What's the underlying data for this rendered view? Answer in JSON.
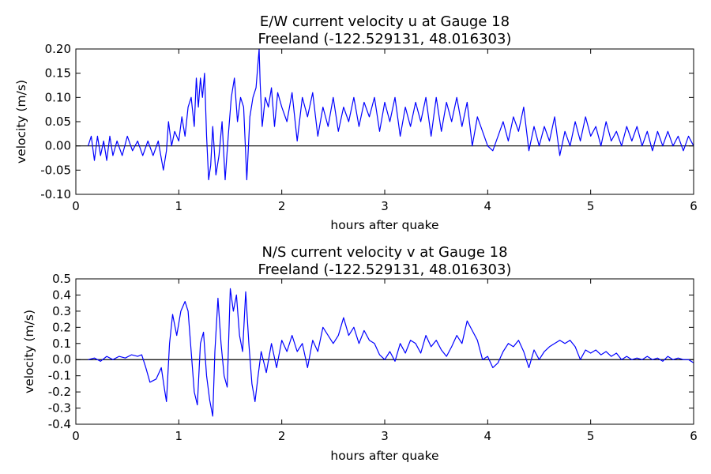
{
  "chart_data": [
    {
      "type": "line",
      "title": "E/W current velocity u at Gauge 18",
      "subtitle": "Freeland  (-122.529131, 48.016303)",
      "xlabel": "hours after quake",
      "ylabel": "velocity (m/s)",
      "xlim": [
        0,
        6
      ],
      "ylim": [
        -0.1,
        0.2
      ],
      "xticks": [
        "0",
        "1",
        "2",
        "3",
        "4",
        "5",
        "6"
      ],
      "yticks": [
        "-0.10",
        "-0.05",
        "0.00",
        "0.05",
        "0.10",
        "0.15",
        "0.20"
      ],
      "grid": false,
      "zero_line": true,
      "colors": {
        "series": "#0000ff",
        "zero": "#000000"
      },
      "series": [
        {
          "x": [
            0.12,
            0.15,
            0.18,
            0.21,
            0.24,
            0.27,
            0.3,
            0.33,
            0.36,
            0.4,
            0.45,
            0.5,
            0.55,
            0.6,
            0.65,
            0.7,
            0.75,
            0.8,
            0.85,
            0.88,
            0.9,
            0.93,
            0.96,
            1.0,
            1.03,
            1.06,
            1.09,
            1.12,
            1.15,
            1.17,
            1.19,
            1.21,
            1.23,
            1.25,
            1.27,
            1.29,
            1.31,
            1.33,
            1.36,
            1.39,
            1.42,
            1.45,
            1.48,
            1.51,
            1.54,
            1.57,
            1.6,
            1.63,
            1.66,
            1.69,
            1.72,
            1.75,
            1.78,
            1.79,
            1.81,
            1.84,
            1.87,
            1.9,
            1.93,
            1.96,
            2.0,
            2.05,
            2.1,
            2.15,
            2.2,
            2.25,
            2.3,
            2.35,
            2.4,
            2.45,
            2.5,
            2.55,
            2.6,
            2.65,
            2.7,
            2.75,
            2.8,
            2.85,
            2.9,
            2.95,
            3.0,
            3.05,
            3.1,
            3.15,
            3.2,
            3.25,
            3.3,
            3.35,
            3.4,
            3.45,
            3.5,
            3.55,
            3.6,
            3.65,
            3.7,
            3.75,
            3.8,
            3.85,
            3.9,
            3.95,
            4.0,
            4.05,
            4.1,
            4.15,
            4.2,
            4.25,
            4.3,
            4.35,
            4.4,
            4.45,
            4.5,
            4.55,
            4.6,
            4.65,
            4.7,
            4.75,
            4.8,
            4.85,
            4.9,
            4.95,
            5.0,
            5.05,
            5.1,
            5.15,
            5.2,
            5.25,
            5.3,
            5.35,
            5.4,
            5.45,
            5.5,
            5.55,
            5.6,
            5.65,
            5.7,
            5.75,
            5.8,
            5.85,
            5.9,
            5.95,
            6.0
          ],
          "y": [
            0.0,
            0.02,
            -0.03,
            0.02,
            -0.02,
            0.01,
            -0.03,
            0.02,
            -0.02,
            0.01,
            -0.02,
            0.02,
            -0.01,
            0.01,
            -0.02,
            0.01,
            -0.02,
            0.01,
            -0.05,
            -0.01,
            0.05,
            0.0,
            0.03,
            0.01,
            0.06,
            0.02,
            0.08,
            0.1,
            0.04,
            0.14,
            0.08,
            0.14,
            0.1,
            0.15,
            0.02,
            -0.07,
            -0.04,
            0.04,
            -0.06,
            -0.02,
            0.05,
            -0.07,
            0.02,
            0.1,
            0.14,
            0.05,
            0.1,
            0.08,
            -0.07,
            0.06,
            0.1,
            0.12,
            0.2,
            0.13,
            0.04,
            0.1,
            0.08,
            0.12,
            0.04,
            0.11,
            0.08,
            0.05,
            0.11,
            0.01,
            0.1,
            0.06,
            0.11,
            0.02,
            0.08,
            0.04,
            0.1,
            0.03,
            0.08,
            0.05,
            0.1,
            0.04,
            0.09,
            0.06,
            0.1,
            0.03,
            0.09,
            0.05,
            0.1,
            0.02,
            0.08,
            0.04,
            0.09,
            0.05,
            0.1,
            0.02,
            0.1,
            0.03,
            0.09,
            0.05,
            0.1,
            0.04,
            0.09,
            0.0,
            0.06,
            0.03,
            0.0,
            -0.01,
            0.02,
            0.05,
            0.01,
            0.06,
            0.03,
            0.08,
            -0.01,
            0.04,
            0.0,
            0.04,
            0.01,
            0.06,
            -0.02,
            0.03,
            0.0,
            0.05,
            0.01,
            0.06,
            0.02,
            0.04,
            0.0,
            0.05,
            0.01,
            0.03,
            0.0,
            0.04,
            0.01,
            0.04,
            0.0,
            0.03,
            -0.01,
            0.03,
            0.0,
            0.03,
            0.0,
            0.02,
            -0.01,
            0.02,
            0.0
          ]
        }
      ]
    },
    {
      "type": "line",
      "title": "N/S current velocity v at Gauge 18",
      "subtitle": "Freeland  (-122.529131, 48.016303)",
      "xlabel": "hours after quake",
      "ylabel": "velocity (m/s)",
      "xlim": [
        0,
        6
      ],
      "ylim": [
        -0.4,
        0.5
      ],
      "xticks": [
        "0",
        "1",
        "2",
        "3",
        "4",
        "5",
        "6"
      ],
      "yticks": [
        "-0.4",
        "-0.3",
        "-0.2",
        "-0.1",
        "0.0",
        "0.1",
        "0.2",
        "0.3",
        "0.4",
        "0.5"
      ],
      "grid": false,
      "zero_line": true,
      "colors": {
        "series": "#0000ff",
        "zero": "#000000"
      },
      "series": [
        {
          "x": [
            0.12,
            0.18,
            0.24,
            0.3,
            0.36,
            0.42,
            0.48,
            0.54,
            0.6,
            0.64,
            0.68,
            0.72,
            0.78,
            0.83,
            0.86,
            0.88,
            0.91,
            0.94,
            0.98,
            1.02,
            1.06,
            1.09,
            1.12,
            1.15,
            1.18,
            1.21,
            1.24,
            1.27,
            1.3,
            1.33,
            1.35,
            1.38,
            1.41,
            1.44,
            1.47,
            1.5,
            1.53,
            1.56,
            1.59,
            1.62,
            1.65,
            1.68,
            1.71,
            1.74,
            1.77,
            1.8,
            1.85,
            1.9,
            1.95,
            2.0,
            2.05,
            2.1,
            2.15,
            2.2,
            2.25,
            2.3,
            2.35,
            2.4,
            2.45,
            2.5,
            2.55,
            2.6,
            2.65,
            2.7,
            2.75,
            2.8,
            2.85,
            2.9,
            2.95,
            3.0,
            3.05,
            3.1,
            3.15,
            3.2,
            3.25,
            3.3,
            3.35,
            3.4,
            3.45,
            3.5,
            3.55,
            3.6,
            3.65,
            3.7,
            3.75,
            3.8,
            3.85,
            3.9,
            3.95,
            4.0,
            4.05,
            4.1,
            4.15,
            4.2,
            4.25,
            4.3,
            4.35,
            4.4,
            4.45,
            4.5,
            4.55,
            4.6,
            4.65,
            4.7,
            4.75,
            4.8,
            4.85,
            4.9,
            4.95,
            5.0,
            5.05,
            5.1,
            5.15,
            5.2,
            5.25,
            5.3,
            5.35,
            5.4,
            5.45,
            5.5,
            5.55,
            5.6,
            5.65,
            5.7,
            5.75,
            5.8,
            5.85,
            5.9,
            5.95,
            6.0
          ],
          "y": [
            0.0,
            0.01,
            -0.01,
            0.02,
            0.0,
            0.02,
            0.01,
            0.03,
            0.02,
            0.03,
            -0.05,
            -0.14,
            -0.12,
            -0.05,
            -0.18,
            -0.26,
            0.1,
            0.28,
            0.15,
            0.3,
            0.36,
            0.3,
            0.05,
            -0.2,
            -0.28,
            0.1,
            0.17,
            -0.1,
            -0.25,
            -0.35,
            0.05,
            0.38,
            0.1,
            -0.1,
            -0.17,
            0.44,
            0.3,
            0.4,
            0.15,
            0.05,
            0.42,
            0.1,
            -0.15,
            -0.26,
            -0.1,
            0.05,
            -0.08,
            0.1,
            -0.05,
            0.12,
            0.05,
            0.15,
            0.05,
            0.1,
            -0.05,
            0.12,
            0.05,
            0.2,
            0.15,
            0.1,
            0.15,
            0.26,
            0.15,
            0.2,
            0.1,
            0.18,
            0.12,
            0.1,
            0.03,
            0.0,
            0.05,
            -0.01,
            0.1,
            0.04,
            0.12,
            0.1,
            0.04,
            0.15,
            0.08,
            0.12,
            0.06,
            0.02,
            0.08,
            0.15,
            0.1,
            0.24,
            0.18,
            0.12,
            0.0,
            0.02,
            -0.05,
            -0.02,
            0.05,
            0.1,
            0.08,
            0.12,
            0.05,
            -0.05,
            0.06,
            0.0,
            0.05,
            0.08,
            0.1,
            0.12,
            0.1,
            0.12,
            0.08,
            0.0,
            0.06,
            0.04,
            0.06,
            0.03,
            0.05,
            0.02,
            0.04,
            0.0,
            0.02,
            0.0,
            0.01,
            0.0,
            0.02,
            0.0,
            0.01,
            -0.01,
            0.02,
            0.0,
            0.01,
            0.0,
            0.0,
            -0.02
          ]
        }
      ]
    }
  ]
}
